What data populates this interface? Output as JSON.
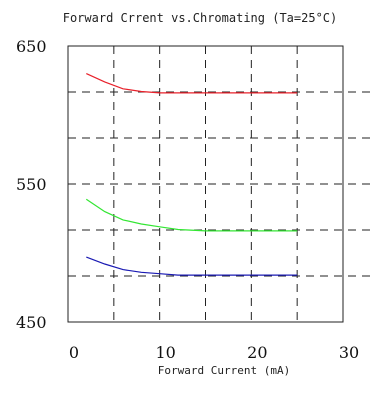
{
  "chart_data": {
    "type": "line",
    "title": "Forward Crrent vs.Chromating (Ta=25°C)",
    "xlabel": "Forward Current (mA)",
    "ylabel": "",
    "xlim": [
      0,
      30
    ],
    "ylim": [
      450,
      650
    ],
    "x_ticks": [
      "0",
      "10",
      "20",
      "30"
    ],
    "y_ticks": [
      "650",
      "550",
      "450"
    ],
    "grid": true,
    "grid_style": "dashed",
    "series": [
      {
        "color": "#e8202a",
        "x": [
          2,
          4,
          6,
          8,
          10,
          12,
          15,
          20,
          25
        ],
        "y": [
          630,
          624,
          619,
          617,
          616,
          616,
          616,
          616,
          616
        ]
      },
      {
        "color": "#33e633",
        "x": [
          2,
          4,
          6,
          8,
          10,
          12,
          15,
          20,
          25
        ],
        "y": [
          539,
          530,
          524,
          521,
          519,
          517,
          516,
          516,
          516
        ]
      },
      {
        "color": "#1a1ab3",
        "x": [
          2,
          4,
          6,
          8,
          10,
          12,
          15,
          20,
          25
        ],
        "y": [
          497,
          492,
          488,
          486,
          485,
          484,
          484,
          484,
          484
        ]
      }
    ]
  }
}
